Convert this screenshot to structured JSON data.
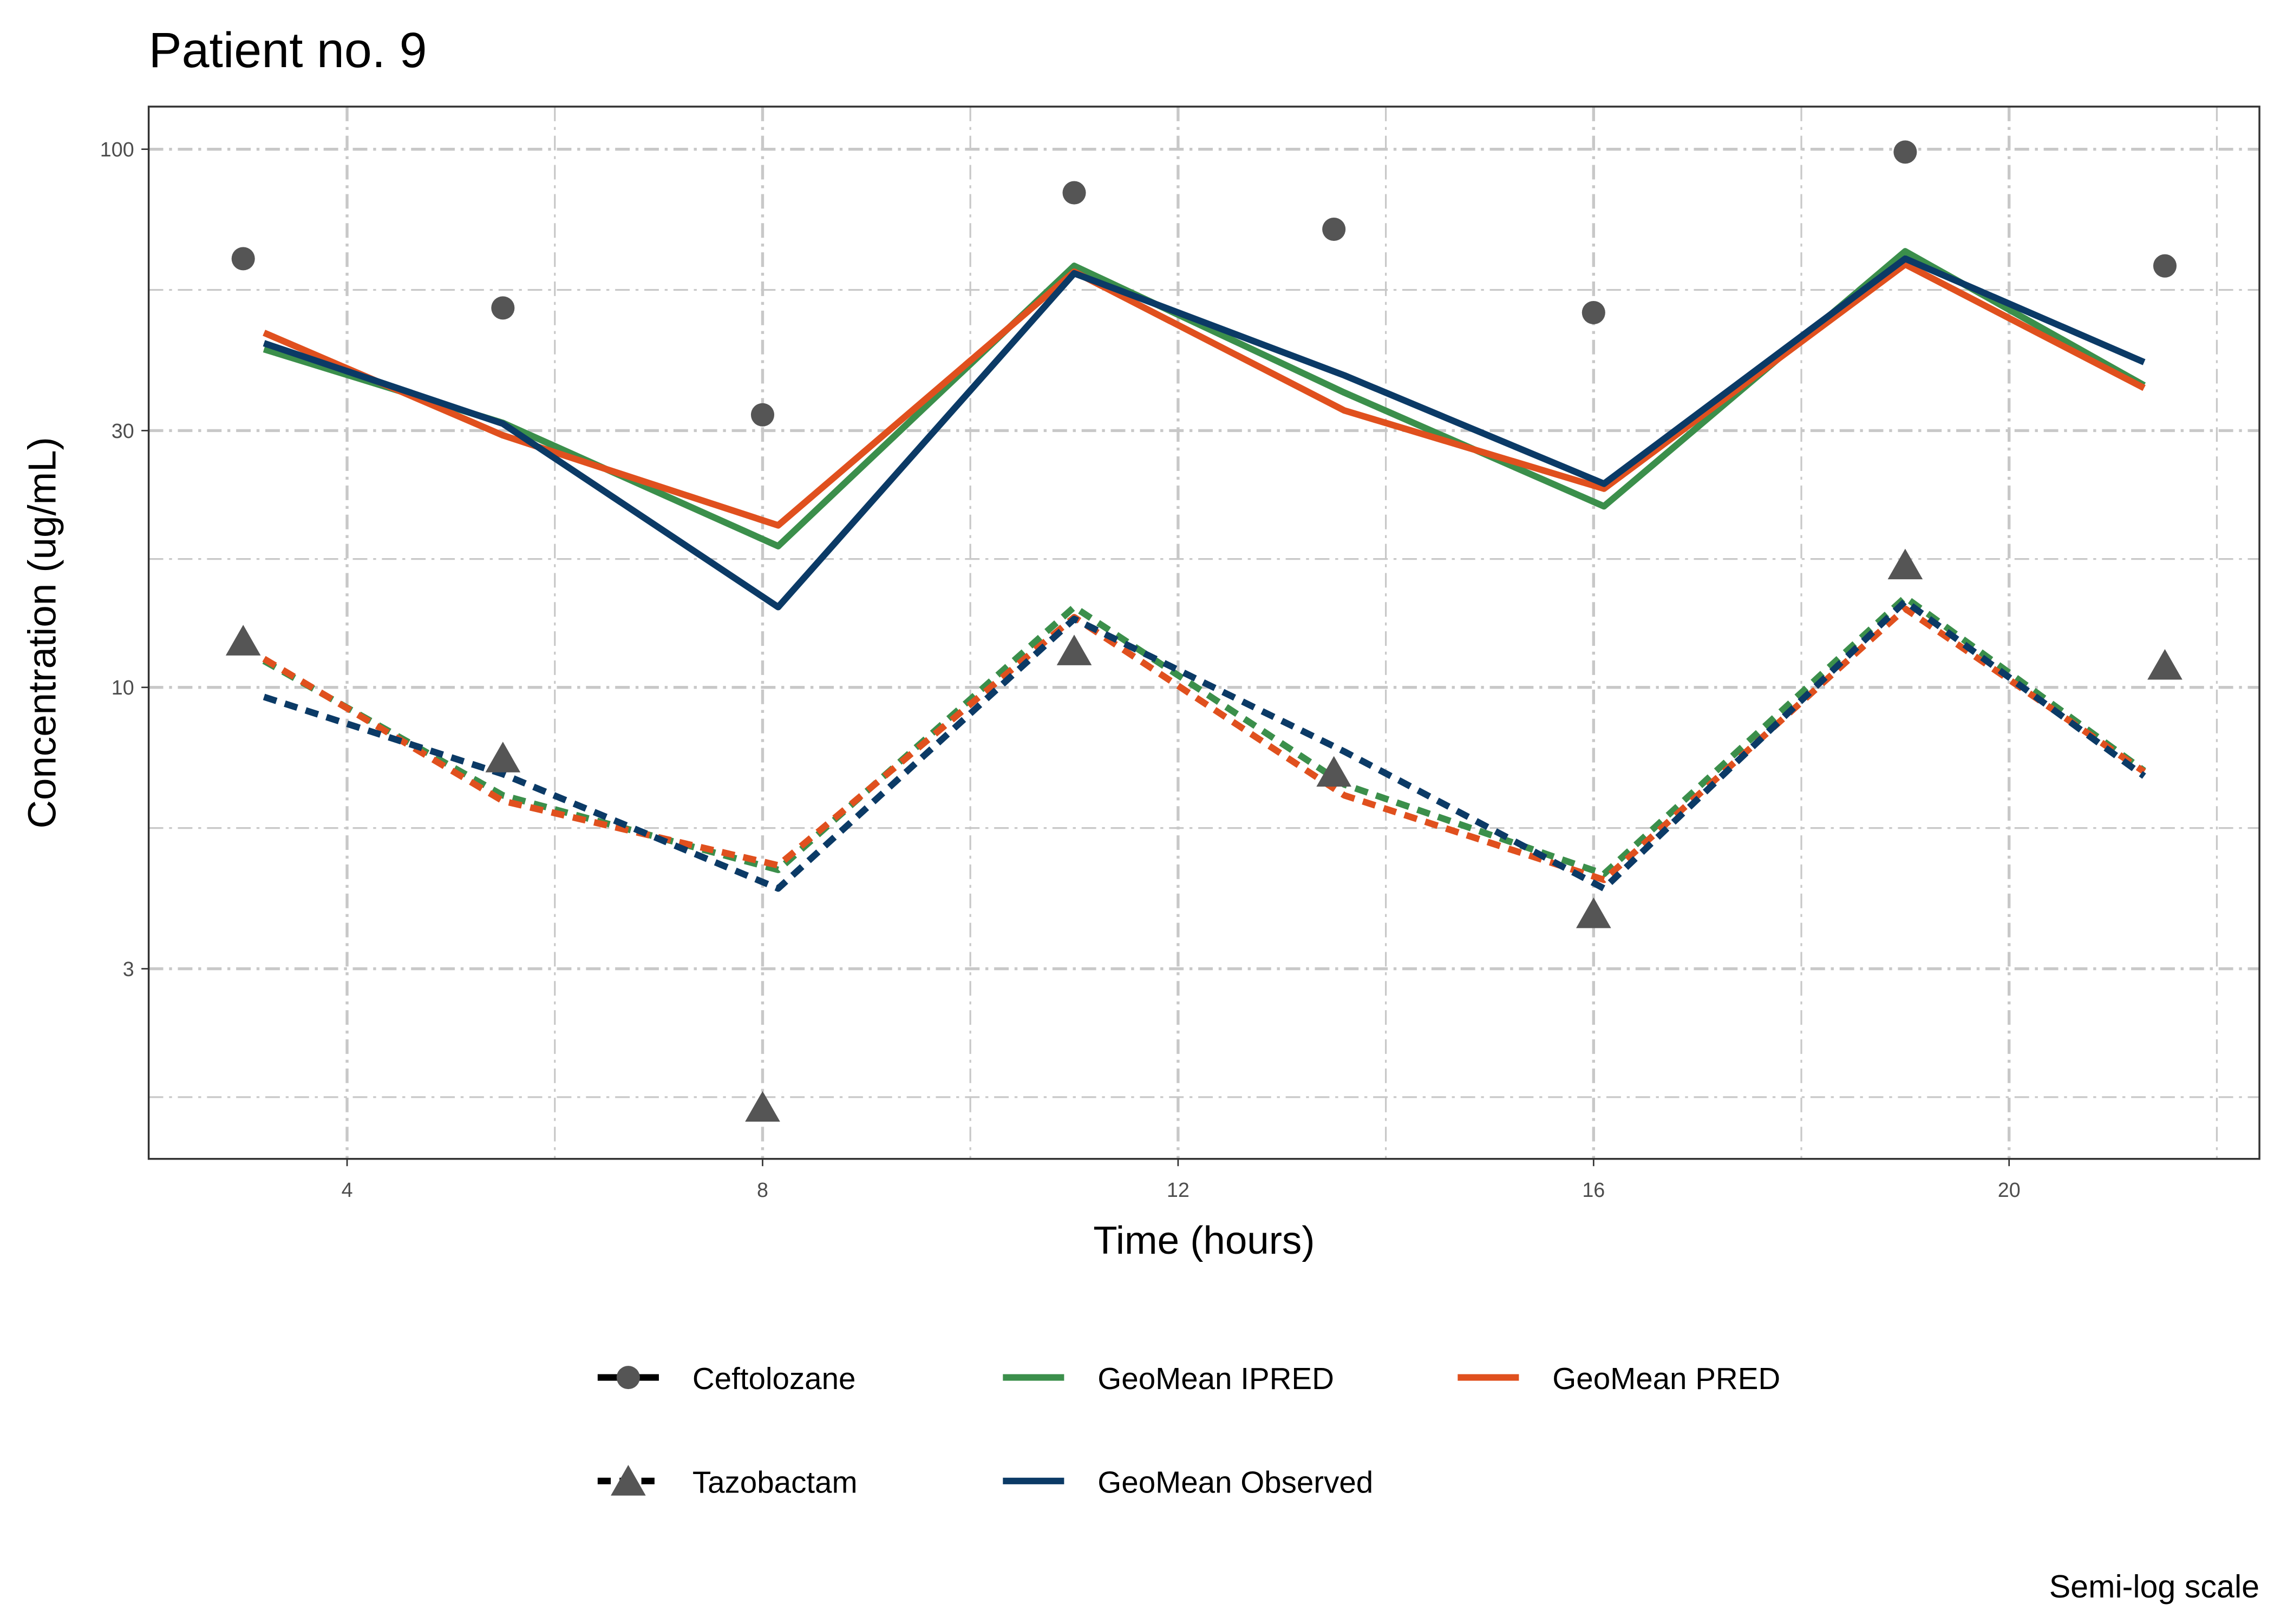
{
  "chart_data": {
    "type": "line",
    "title": "Patient no. 9",
    "xlabel": "Time (hours)",
    "ylabel": "Concentration (ug/mL)",
    "caption": "Semi-log scale",
    "yscale": "log10",
    "xlim": [
      2.09,
      22.41
    ],
    "ylim": [
      1.33,
      120
    ],
    "xticks": [
      4,
      8,
      12,
      16,
      20
    ],
    "xtick_labels": [
      "4",
      "8",
      "12",
      "16",
      "20"
    ],
    "yticks": [
      3,
      10,
      30,
      100
    ],
    "ytick_labels": [
      "3",
      "10",
      "30",
      "100"
    ],
    "grid": true,
    "legend_position": "bottom",
    "colors": {
      "points": "#555555",
      "ipred": "#3b8f4b",
      "pred": "#e0501e",
      "observed": "#0b3a66"
    },
    "points": [
      {
        "name": "Ceftolozane",
        "shape": "circle",
        "x": [
          3,
          5.5,
          8,
          11,
          13.5,
          16,
          19,
          21.5
        ],
        "y": [
          62.6,
          50.7,
          32.1,
          83,
          71,
          49.7,
          98.8,
          60.7
        ]
      },
      {
        "name": "Tazobactam",
        "shape": "triangle",
        "x": [
          3,
          5.5,
          8,
          11,
          13.5,
          16,
          19,
          21.5
        ],
        "y": [
          12.2,
          7.4,
          1.66,
          11.7,
          6.96,
          3.8,
          16.9,
          11.0
        ]
      }
    ],
    "line_x": [
      3.2,
      5.5,
      8.15,
      11,
      13.6,
      16.1,
      19,
      21.3
    ],
    "series": [
      {
        "name": "GeoMean IPRED",
        "drug": "Ceftolozane",
        "color_key": "ipred",
        "dash": false,
        "values": [
          42.5,
          31,
          18.3,
          60.7,
          35.3,
          21.7,
          64.6,
          36.4
        ]
      },
      {
        "name": "GeoMean PRED",
        "drug": "Ceftolozane",
        "color_key": "pred",
        "dash": false,
        "values": [
          45.6,
          29.4,
          20,
          59.2,
          32.7,
          23.4,
          61.1,
          36
        ]
      },
      {
        "name": "GeoMean Observed",
        "drug": "Ceftolozane",
        "color_key": "observed",
        "dash": false,
        "values": [
          43.6,
          30.9,
          14.1,
          58.8,
          38,
          23.9,
          62.6,
          40.2
        ]
      },
      {
        "name": "GeoMean IPRED",
        "drug": "Tazobactam",
        "color_key": "ipred",
        "dash": true,
        "values": [
          11.2,
          6.3,
          4.58,
          14.1,
          6.6,
          4.5,
          14.7,
          7.0
        ]
      },
      {
        "name": "GeoMean PRED",
        "drug": "Tazobactam",
        "color_key": "pred",
        "dash": true,
        "values": [
          11.3,
          6.15,
          4.67,
          13.5,
          6.3,
          4.39,
          14.0,
          6.97
        ]
      },
      {
        "name": "GeoMean Observed",
        "drug": "Tazobactam",
        "color_key": "observed",
        "dash": true,
        "values": [
          9.6,
          6.9,
          4.23,
          13.4,
          7.6,
          4.23,
          14.45,
          6.84
        ]
      }
    ],
    "legend": [
      "Ceftolozane",
      "Tazobactam",
      "GeoMean IPRED",
      "GeoMean Observed",
      "GeoMean PRED"
    ]
  }
}
